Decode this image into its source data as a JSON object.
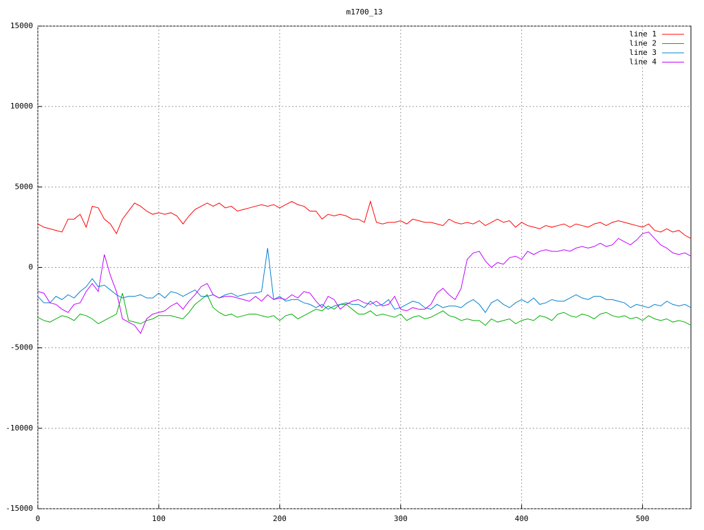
{
  "chart_data": {
    "type": "line",
    "title": "m1700_13",
    "x": [
      0,
      5,
      10,
      15,
      20,
      25,
      30,
      35,
      40,
      45,
      50,
      55,
      60,
      65,
      70,
      75,
      80,
      85,
      90,
      95,
      100,
      105,
      110,
      115,
      120,
      125,
      130,
      135,
      140,
      145,
      150,
      155,
      160,
      165,
      170,
      175,
      180,
      185,
      190,
      195,
      200,
      205,
      210,
      215,
      220,
      225,
      230,
      235,
      240,
      245,
      250,
      255,
      260,
      265,
      270,
      275,
      280,
      285,
      290,
      295,
      300,
      305,
      310,
      315,
      320,
      325,
      330,
      335,
      340,
      345,
      350,
      355,
      360,
      365,
      370,
      375,
      380,
      385,
      390,
      395,
      400,
      405,
      410,
      415,
      420,
      425,
      430,
      435,
      440,
      445,
      450,
      455,
      460,
      465,
      470,
      475,
      480,
      485,
      490,
      495,
      500,
      505,
      510,
      515,
      520,
      525,
      530,
      535,
      540
    ],
    "series": [
      {
        "name": "line 1",
        "color": "#ff0000",
        "values": [
          2700,
          2500,
          2400,
          2300,
          2200,
          3000,
          3000,
          3300,
          2500,
          3800,
          3700,
          3000,
          2700,
          2100,
          3000,
          3500,
          4000,
          3800,
          3500,
          3300,
          3400,
          3300,
          3400,
          3200,
          2700,
          3200,
          3600,
          3800,
          4000,
          3800,
          4000,
          3700,
          3800,
          3500,
          3600,
          3700,
          3800,
          3900,
          3800,
          3900,
          3700,
          3900,
          4100,
          3900,
          3800,
          3500,
          3500,
          3000,
          3300,
          3200,
          3300,
          3200,
          3000,
          3000,
          2800,
          4100,
          2800,
          2700,
          2800,
          2800,
          2900,
          2700,
          3000,
          2900,
          2800,
          2800,
          2700,
          2600,
          3000,
          2800,
          2700,
          2800,
          2700,
          2900,
          2600,
          2800,
          3000,
          2800,
          2900,
          2500,
          2800,
          2600,
          2500,
          2400,
          2600,
          2500,
          2600,
          2700,
          2500,
          2700,
          2600,
          2500,
          2700,
          2800,
          2600,
          2800,
          2900,
          2800,
          2700,
          2600,
          2500,
          2700,
          2300,
          2200,
          2400,
          2200,
          2300,
          2000,
          1800
        ]
      },
      {
        "name": "line 2",
        "color": "#00b000",
        "values": [
          -3100,
          -3300,
          -3400,
          -3200,
          -3000,
          -3100,
          -3300,
          -2900,
          -3000,
          -3200,
          -3500,
          -3300,
          -3100,
          -2900,
          -1600,
          -3300,
          -3400,
          -3500,
          -3300,
          -3200,
          -3000,
          -3000,
          -3000,
          -3100,
          -3200,
          -2800,
          -2300,
          -2000,
          -1700,
          -2500,
          -2800,
          -3000,
          -2900,
          -3100,
          -3000,
          -2900,
          -2900,
          -3000,
          -3100,
          -3000,
          -3300,
          -3000,
          -2900,
          -3200,
          -3000,
          -2800,
          -2600,
          -2700,
          -2400,
          -2600,
          -2300,
          -2300,
          -2600,
          -2900,
          -2900,
          -2700,
          -3000,
          -2900,
          -3000,
          -3100,
          -2900,
          -3300,
          -3100,
          -3000,
          -3200,
          -3100,
          -2900,
          -2700,
          -3000,
          -3100,
          -3300,
          -3200,
          -3300,
          -3300,
          -3600,
          -3200,
          -3400,
          -3300,
          -3200,
          -3500,
          -3300,
          -3200,
          -3300,
          -3000,
          -3100,
          -3300,
          -2900,
          -2800,
          -3000,
          -3100,
          -2900,
          -3000,
          -3200,
          -2900,
          -2800,
          -3000,
          -3100,
          -3000,
          -3200,
          -3100,
          -3300,
          -3000,
          -3200,
          -3300,
          -3200,
          -3400,
          -3300,
          -3400,
          -3600
        ]
      },
      {
        "name": "line 3",
        "color": "#0080d0",
        "values": [
          -1800,
          -2200,
          -2200,
          -1800,
          -2000,
          -1700,
          -1900,
          -1500,
          -1200,
          -700,
          -1200,
          -1100,
          -1400,
          -1700,
          -1900,
          -1800,
          -1800,
          -1700,
          -1900,
          -1900,
          -1600,
          -1900,
          -1500,
          -1600,
          -1800,
          -1600,
          -1400,
          -1800,
          -1800,
          -1700,
          -1900,
          -1700,
          -1600,
          -1800,
          -1700,
          -1600,
          -1600,
          -1500,
          1200,
          -2000,
          -1800,
          -2100,
          -2000,
          -2000,
          -2200,
          -2300,
          -2500,
          -2300,
          -2600,
          -2400,
          -2300,
          -2200,
          -2300,
          -2300,
          -2500,
          -2100,
          -2400,
          -2300,
          -2000,
          -2600,
          -2500,
          -2300,
          -2100,
          -2200,
          -2500,
          -2600,
          -2300,
          -2500,
          -2400,
          -2400,
          -2500,
          -2200,
          -2000,
          -2300,
          -2800,
          -2200,
          -2000,
          -2300,
          -2500,
          -2200,
          -2000,
          -2200,
          -1900,
          -2300,
          -2200,
          -2000,
          -2100,
          -2100,
          -1900,
          -1700,
          -1900,
          -2000,
          -1800,
          -1800,
          -2000,
          -2000,
          -2100,
          -2200,
          -2500,
          -2300,
          -2400,
          -2500,
          -2300,
          -2400,
          -2100,
          -2300,
          -2400,
          -2300,
          -2500
        ]
      },
      {
        "name": "line 4",
        "color": "#c000ff",
        "values": [
          -1500,
          -1600,
          -2200,
          -2300,
          -2600,
          -2800,
          -2300,
          -2200,
          -1500,
          -1000,
          -1500,
          800,
          -500,
          -1500,
          -3200,
          -3400,
          -3600,
          -4100,
          -3200,
          -2900,
          -2800,
          -2700,
          -2400,
          -2200,
          -2600,
          -2100,
          -1700,
          -1200,
          -1000,
          -1700,
          -1900,
          -1800,
          -1800,
          -1900,
          -2000,
          -2100,
          -1800,
          -2100,
          -1700,
          -2000,
          -1900,
          -2000,
          -1700,
          -1900,
          -1500,
          -1600,
          -2100,
          -2500,
          -1800,
          -2000,
          -2600,
          -2300,
          -2100,
          -2000,
          -2200,
          -2300,
          -2100,
          -2400,
          -2300,
          -1800,
          -2600,
          -2700,
          -2500,
          -2600,
          -2600,
          -2300,
          -1600,
          -1300,
          -1700,
          -2000,
          -1300,
          500,
          900,
          1000,
          400,
          0,
          300,
          200,
          600,
          700,
          500,
          1000,
          800,
          1000,
          1100,
          1000,
          1000,
          1100,
          1000,
          1200,
          1300,
          1200,
          1300,
          1500,
          1300,
          1400,
          1800,
          1600,
          1400,
          1700,
          2100,
          2200,
          1800,
          1400,
          1200,
          900,
          800,
          900,
          700
        ]
      }
    ],
    "xlim": [
      0,
      540
    ],
    "xticks": [
      0,
      100,
      200,
      300,
      400,
      500
    ],
    "ylim": [
      -15000,
      15000
    ],
    "yticks": [
      -15000,
      -10000,
      -5000,
      0,
      5000,
      10000,
      15000
    ],
    "grid": true,
    "legend": "top-right"
  }
}
